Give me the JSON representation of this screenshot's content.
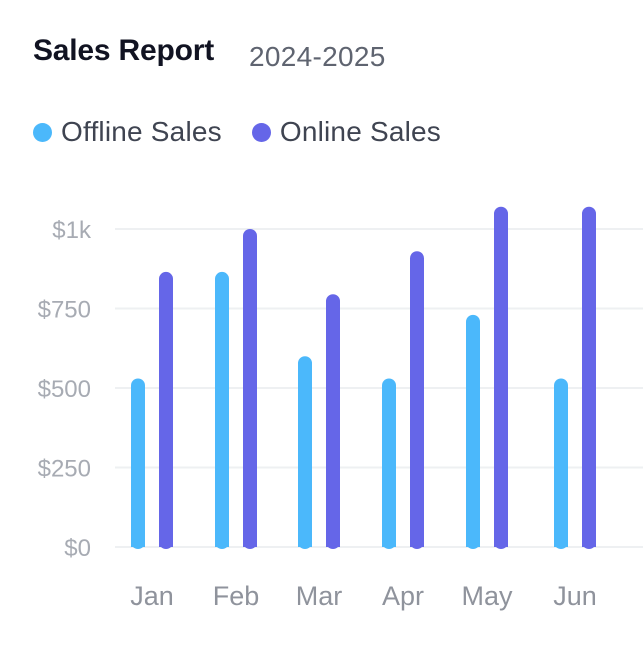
{
  "header": {
    "title": "Sales Report",
    "subtitle": "2024-2025"
  },
  "colors": {
    "offline": "#4bb8fb",
    "online": "#6566e8",
    "grid": "#eef0f2",
    "tick": "#a7abb3",
    "category": "#8f939c"
  },
  "chart_data": {
    "type": "bar",
    "title": "Sales Report",
    "subtitle": "2024-2025",
    "xlabel": "",
    "ylabel": "",
    "categories": [
      "Jan",
      "Feb",
      "Mar",
      "Apr",
      "May",
      "Jun"
    ],
    "series": [
      {
        "name": "Offline Sales",
        "values": [
          530,
          865,
          600,
          530,
          730,
          530
        ]
      },
      {
        "name": "Online Sales",
        "values": [
          865,
          1000,
          795,
          930,
          1070,
          1070
        ]
      }
    ],
    "yticks": [
      0,
      250,
      500,
      750,
      1000
    ],
    "ytick_labels": [
      "$0",
      "$250",
      "$500",
      "$750",
      "$1k"
    ],
    "ylim": [
      0,
      1000
    ],
    "grid": true,
    "legend": "top-left"
  }
}
